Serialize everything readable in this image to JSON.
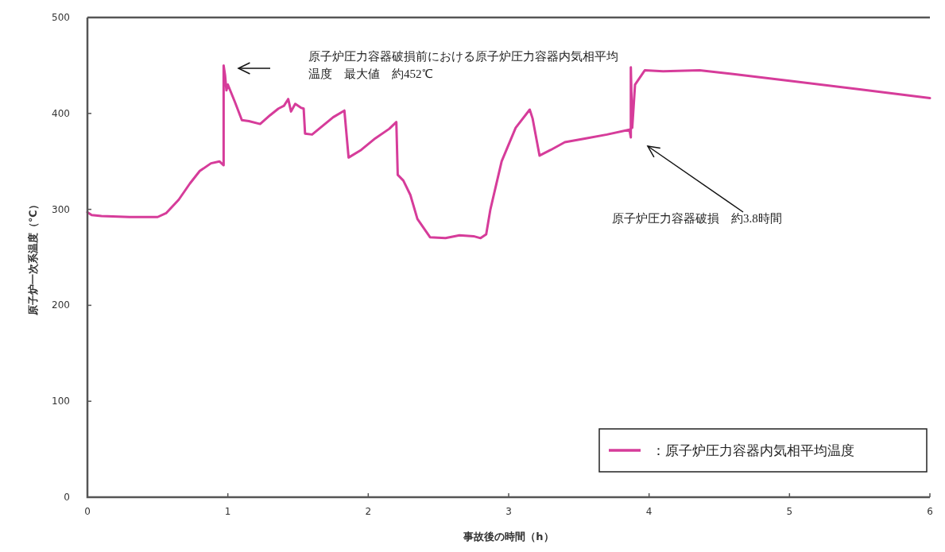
{
  "chart_data": {
    "type": "line",
    "xlabel": "事故後の時間（h）",
    "ylabel": "原子炉一次系温度（℃）",
    "xlim": [
      0,
      6
    ],
    "ylim": [
      0,
      500
    ],
    "xticks": [
      0,
      1,
      2,
      3,
      4,
      5,
      6
    ],
    "yticks": [
      0,
      100,
      200,
      300,
      400,
      500
    ],
    "legend": "bottom right",
    "grid": false,
    "series": [
      {
        "name": "：原子炉圧力容器内気相平均温度",
        "color": "#d63c9a",
        "x": [
          0,
          0.03,
          0.1,
          0.3,
          0.5,
          0.56,
          0.65,
          0.73,
          0.8,
          0.88,
          0.94,
          0.97,
          0.97,
          0.98,
          0.99,
          1.0,
          1.05,
          1.1,
          1.15,
          1.23,
          1.3,
          1.36,
          1.4,
          1.43,
          1.45,
          1.48,
          1.52,
          1.54,
          1.55,
          1.6,
          1.65,
          1.75,
          1.83,
          1.86,
          1.95,
          2.05,
          2.15,
          2.2,
          2.21,
          2.25,
          2.3,
          2.35,
          2.44,
          2.55,
          2.65,
          2.75,
          2.8,
          2.84,
          2.87,
          2.95,
          3.05,
          3.15,
          3.17,
          3.22,
          3.3,
          3.4,
          3.55,
          3.7,
          3.86,
          3.87,
          3.87,
          3.88,
          3.9,
          3.97,
          4.1,
          4.36,
          4.6,
          5.0,
          5.5,
          6.0
        ],
        "values": [
          297,
          294,
          293,
          292,
          292,
          296,
          310,
          327,
          340,
          348,
          350,
          346,
          450,
          440,
          424,
          430,
          412,
          393,
          392,
          389,
          398,
          405,
          408,
          415,
          402,
          410,
          406,
          405,
          379,
          378,
          384,
          396,
          403,
          354,
          362,
          374,
          384,
          391,
          336,
          330,
          315,
          290,
          271,
          270,
          273,
          272,
          270,
          274,
          300,
          350,
          385,
          404,
          395,
          356,
          362,
          370,
          374,
          378,
          383,
          375,
          448,
          385,
          430,
          445,
          444,
          445,
          441,
          434,
          425,
          416
        ]
      }
    ],
    "annotations": [
      "原子炉圧力容器破損前における原子炉圧力容器内気相平均温度　最大値　約452℃",
      "原子炉圧力容器破損　約3.8時間"
    ]
  }
}
